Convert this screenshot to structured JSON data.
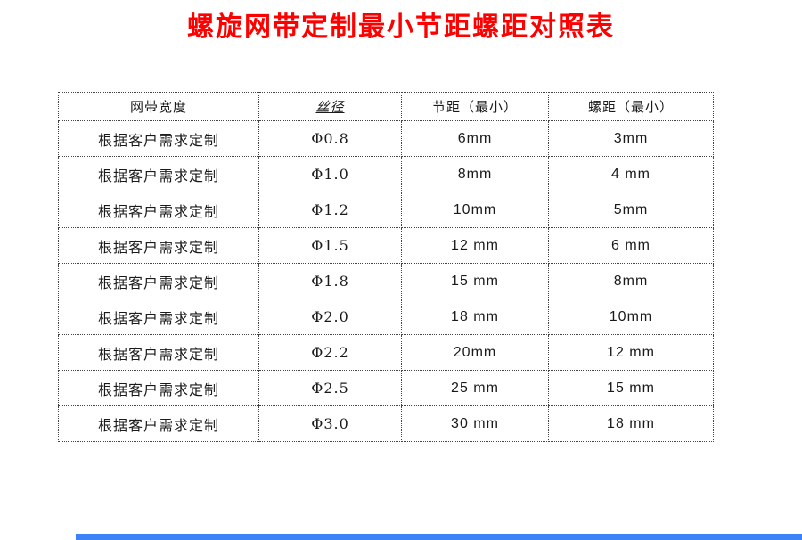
{
  "title": "螺旋网带定制最小节距螺距对照表",
  "colors": {
    "title": "#ff0000",
    "table_border": "#444444",
    "scrollbar": "#3e82f7"
  },
  "table": {
    "headers": [
      "网带宽度",
      "丝径",
      "节距（最小）",
      "螺距（最小）"
    ],
    "rows": [
      [
        "根据客户需求定制",
        "Φ0.8",
        "6mm",
        "3mm"
      ],
      [
        "根据客户需求定制",
        "Φ1.0",
        "8mm",
        "4 mm"
      ],
      [
        "根据客户需求定制",
        "Φ1.2",
        "10mm",
        "5mm"
      ],
      [
        "根据客户需求定制",
        "Φ1.5",
        "12 mm",
        "6 mm"
      ],
      [
        "根据客户需求定制",
        "Φ1.8",
        "15 mm",
        "8mm"
      ],
      [
        "根据客户需求定制",
        "Φ2.0",
        "18 mm",
        "10mm"
      ],
      [
        "根据客户需求定制",
        "Φ2.2",
        "20mm",
        "12 mm"
      ],
      [
        "根据客户需求定制",
        "Φ2.5",
        "25 mm",
        "15 mm"
      ],
      [
        "根据客户需求定制",
        "Φ3.0",
        "30 mm",
        "18 mm"
      ]
    ]
  }
}
